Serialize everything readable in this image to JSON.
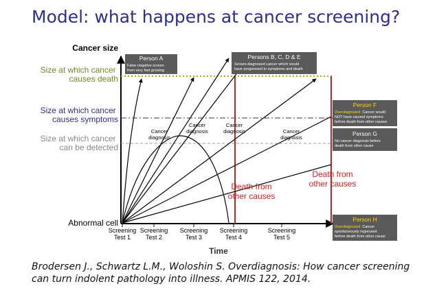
{
  "title": "Model: what happens at cancer screening?",
  "citation": "Brodersen J., Schwartz L.M., Woloshin S. Overdiagnosis: How cancer screening can turn indolent pathology into illness. APMIS 122, 2014.",
  "axes": {
    "y_label": "Cancer size",
    "x_label": "Time",
    "origin_label": "Abnormal cell"
  },
  "thresholds": {
    "death": {
      "line1": "Size at which cancer",
      "line2": "causes death",
      "color": "#6b8e23"
    },
    "symptoms": {
      "line1": "Size at which cancer",
      "line2": "causes symptoms",
      "color": "#2e2e8c"
    },
    "detected": {
      "line1": "Size at which cancer",
      "line2": "can be detected",
      "color": "#888888"
    }
  },
  "tests": [
    {
      "line1": "Screening",
      "line2": "Test 1"
    },
    {
      "line1": "Screening",
      "line2": "Test 2"
    },
    {
      "line1": "Screening",
      "line2": "Test 3"
    },
    {
      "line1": "Screening",
      "line2": "Test 4"
    },
    {
      "line1": "Screening",
      "line2": "Test 5"
    }
  ],
  "diagnosis_labels": [
    {
      "line1": "Cancer",
      "line2": "diagnosis"
    },
    {
      "line1": "Cancer",
      "line2": "diagnosis"
    },
    {
      "line1": "Cancer",
      "line2": "diagnosis"
    },
    {
      "line1": "Cancer",
      "line2": "diagnosis"
    }
  ],
  "death_other": [
    {
      "line1": "Death from",
      "line2": "other causes"
    },
    {
      "line1": "Death from",
      "line2": "other causes"
    }
  ],
  "boxes": {
    "person_a": {
      "name": "Person A",
      "line1": "False negative screen",
      "line2": "from very fast growing"
    },
    "person_bcde": {
      "name": "Persons B, C, D & E",
      "line1": "Screen-diagnosed cancer  which would",
      "line2": "have progressed to symptoms and death"
    },
    "person_f": {
      "name": "Person F",
      "prefix": "Overdiagnosed:",
      "line1": " Cancer would",
      "line2": "NOT have caused symptoms",
      "line3": "before death from other causes"
    },
    "person_g": {
      "name": "Person G",
      "line1": "No cancer diagnosis before",
      "line2": "death from other cause"
    },
    "person_h": {
      "name": "Person H",
      "prefix": "Overdiagnosed:",
      "line1": " Cancer",
      "line2": "spontaneously regressed",
      "line3": "before death from other cause"
    }
  },
  "colors": {
    "red": "#cc2222",
    "box_bg": "#5a5a5a",
    "highlight": "#ffd700",
    "title": "#2e2e8c"
  }
}
